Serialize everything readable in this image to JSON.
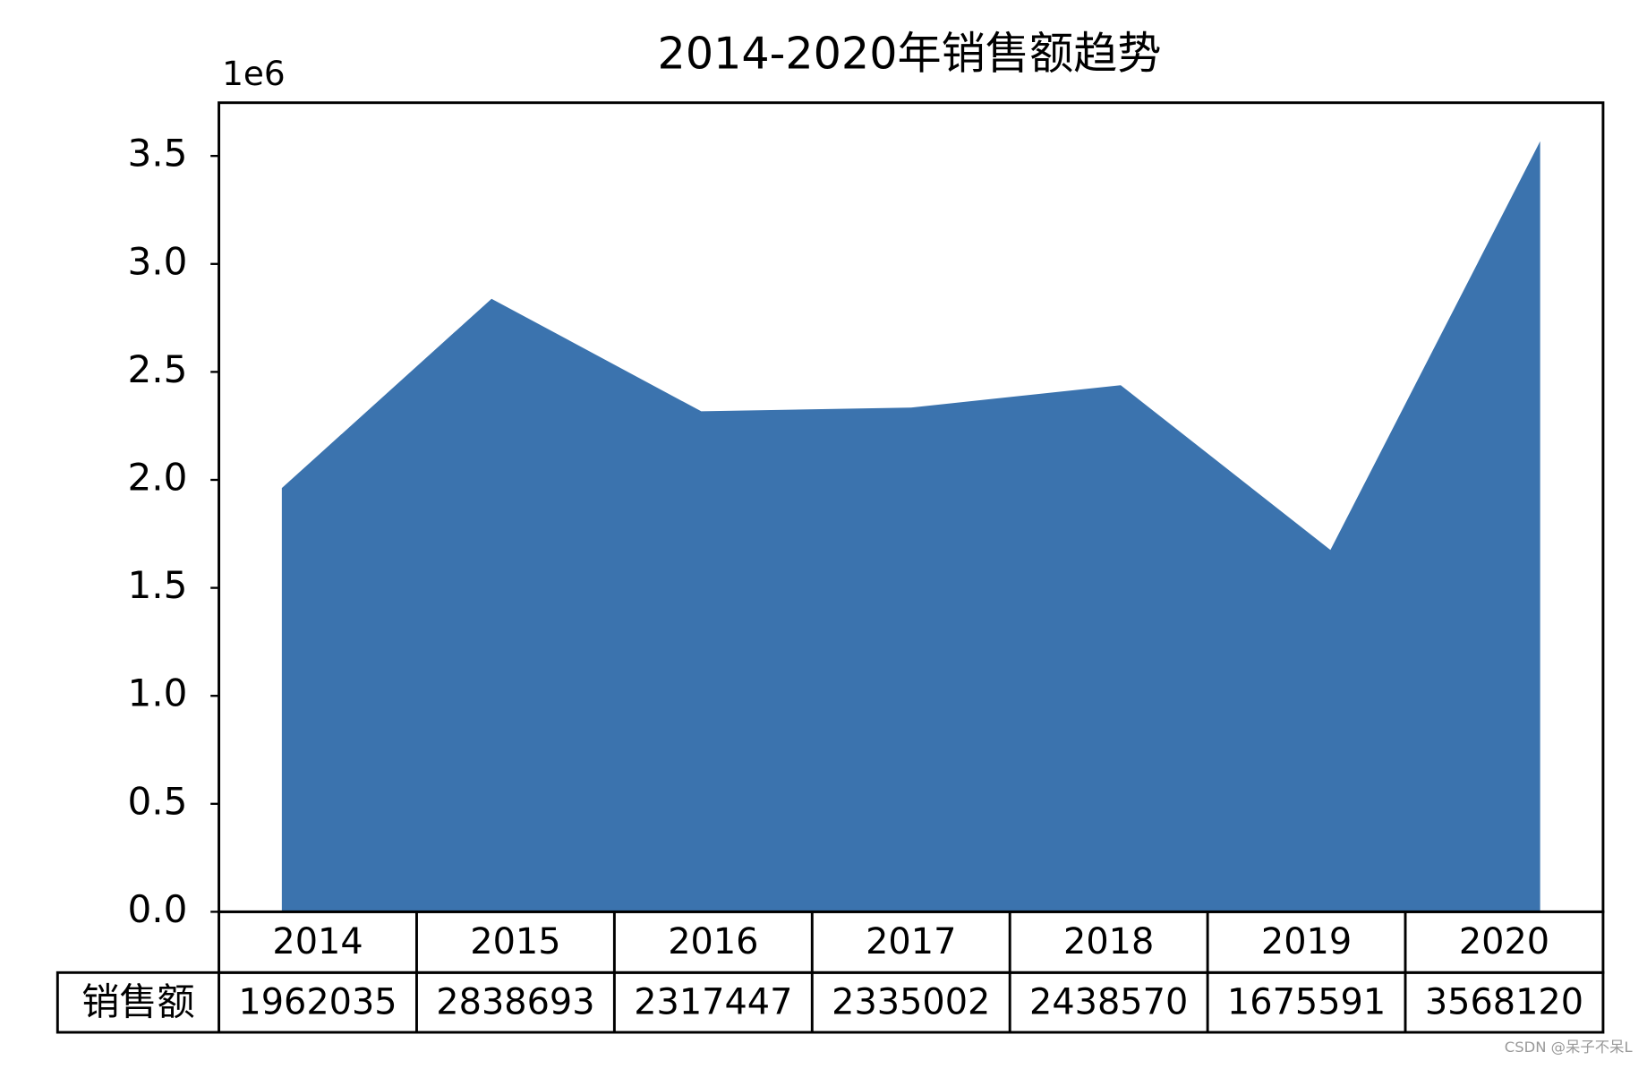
{
  "chart_data": {
    "type": "area",
    "title": "2014-2020年销售额趋势",
    "y_offset_label": "1e6",
    "categories": [
      "2014",
      "2015",
      "2016",
      "2017",
      "2018",
      "2019",
      "2020"
    ],
    "values": [
      1962035,
      2838693,
      2317447,
      2335002,
      2438570,
      1675591,
      3568120
    ],
    "color": "#3b73ae",
    "ylim": [
      0,
      3746526
    ],
    "yticks": [
      {
        "value": 0,
        "label": "0.0"
      },
      {
        "value": 500000,
        "label": "0.5"
      },
      {
        "value": 1000000,
        "label": "1.0"
      },
      {
        "value": 1500000,
        "label": "1.5"
      },
      {
        "value": 2000000,
        "label": "2.0"
      },
      {
        "value": 2500000,
        "label": "2.5"
      },
      {
        "value": 3000000,
        "label": "3.0"
      },
      {
        "value": 3500000,
        "label": "3.5"
      }
    ],
    "grid": false,
    "table_row_label": "销售额"
  },
  "watermark": "CSDN @呆子不呆L"
}
